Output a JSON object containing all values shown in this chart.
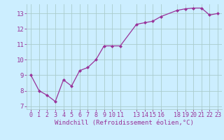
{
  "x": [
    0,
    1,
    2,
    3,
    4,
    5,
    6,
    7,
    8,
    9,
    10,
    11,
    13,
    14,
    15,
    16,
    18,
    19,
    20,
    21,
    22,
    23
  ],
  "y": [
    9.0,
    8.0,
    7.7,
    7.3,
    8.7,
    8.3,
    9.3,
    9.5,
    10.0,
    10.9,
    10.9,
    10.9,
    12.3,
    12.4,
    12.5,
    12.8,
    13.2,
    13.3,
    13.35,
    13.35,
    12.9,
    13.0
  ],
  "line_color": "#993399",
  "marker": "D",
  "marker_size": 2.0,
  "bg_color": "#cceeff",
  "grid_color": "#aacccc",
  "xlabel": "Windchill (Refroidissement éolien,°C)",
  "xlabel_color": "#993399",
  "tick_color": "#993399",
  "label_color": "#993399",
  "ylim": [
    6.8,
    13.6
  ],
  "xlim": [
    -0.5,
    23.5
  ],
  "xticks": [
    0,
    1,
    2,
    3,
    4,
    5,
    6,
    7,
    8,
    9,
    10,
    11,
    13,
    14,
    15,
    16,
    18,
    19,
    20,
    21,
    22,
    23
  ],
  "yticks": [
    7,
    8,
    9,
    10,
    11,
    12,
    13
  ],
  "font_family": "monospace",
  "tick_fontsize": 6.0,
  "xlabel_fontsize": 6.5,
  "linewidth": 0.9
}
